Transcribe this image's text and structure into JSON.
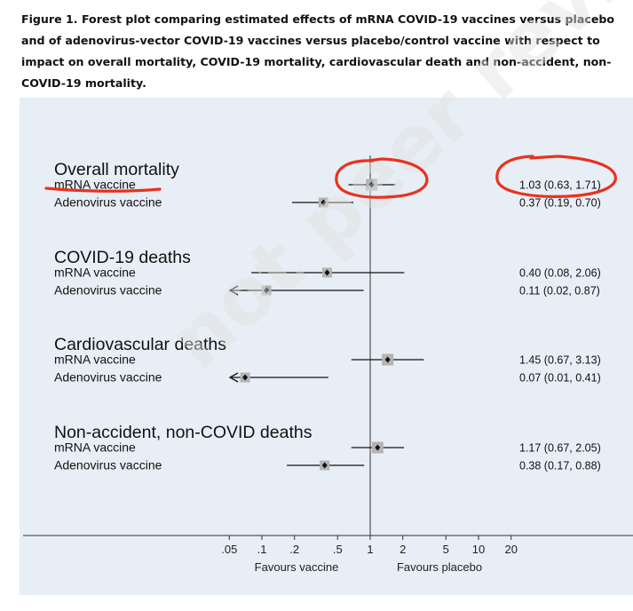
{
  "caption": "Figure 1. Forest plot comparing estimated effects of mRNA COVID-19 vaccines versus placebo and of adenovirus-vector COVID-19 vaccines versus placebo/control vaccine with respect to impact on overall mortality, COVID-19 mortality, cardiovascular death and non-accident, non-COVID-19 mortality.",
  "watermark": "not peer reviewed",
  "colors": {
    "panel": "#e8eef5",
    "annotation": "#e8321e",
    "box": "#b4b4b4"
  },
  "chart_data": {
    "type": "forest",
    "x_scale": "log",
    "reference_line": 1,
    "xlim": [
      0.05,
      20
    ],
    "x_ticks": [
      {
        "value": 0.05,
        "label": ".05"
      },
      {
        "value": 0.1,
        "label": ".1"
      },
      {
        "value": 0.2,
        "label": ".2"
      },
      {
        "value": 0.5,
        "label": ".5"
      },
      {
        "value": 1,
        "label": "1"
      },
      {
        "value": 2,
        "label": "2"
      },
      {
        "value": 5,
        "label": "5"
      },
      {
        "value": 10,
        "label": "10"
      },
      {
        "value": 20,
        "label": "20"
      }
    ],
    "favours_left": "Favours vaccine",
    "favours_right": "Favours placebo",
    "groups": [
      {
        "title": "Overall mortality",
        "rows": [
          {
            "label": "mRNA vaccine",
            "estimate": 1.03,
            "lower": 0.63,
            "upper": 1.71,
            "text": "1.03 (0.63, 1.71)"
          },
          {
            "label": "Adenovirus vaccine",
            "estimate": 0.37,
            "lower": 0.19,
            "upper": 0.7,
            "text": "0.37 (0.19, 0.70)"
          }
        ]
      },
      {
        "title": "COVID-19 deaths",
        "rows": [
          {
            "label": "mRNA vaccine",
            "estimate": 0.4,
            "lower": 0.08,
            "upper": 2.06,
            "text": "0.40 (0.08, 2.06)"
          },
          {
            "label": "Adenovirus vaccine",
            "estimate": 0.11,
            "lower": 0.02,
            "upper": 0.87,
            "text": "0.11 (0.02, 0.87)"
          }
        ]
      },
      {
        "title": "Cardiovascular deaths",
        "rows": [
          {
            "label": "mRNA vaccine",
            "estimate": 1.45,
            "lower": 0.67,
            "upper": 3.13,
            "text": "1.45 (0.67, 3.13)"
          },
          {
            "label": "Adenovirus vaccine",
            "estimate": 0.07,
            "lower": 0.01,
            "upper": 0.41,
            "text": "0.07 (0.01, 0.41)"
          }
        ]
      },
      {
        "title": "Non-accident, non-COVID deaths",
        "rows": [
          {
            "label": "mRNA vaccine",
            "estimate": 1.17,
            "lower": 0.67,
            "upper": 2.05,
            "text": "1.17 (0.67, 2.05)"
          },
          {
            "label": "Adenovirus vaccine",
            "estimate": 0.38,
            "lower": 0.17,
            "upper": 0.88,
            "text": "0.38 (0.17, 0.88)"
          }
        ]
      }
    ]
  }
}
